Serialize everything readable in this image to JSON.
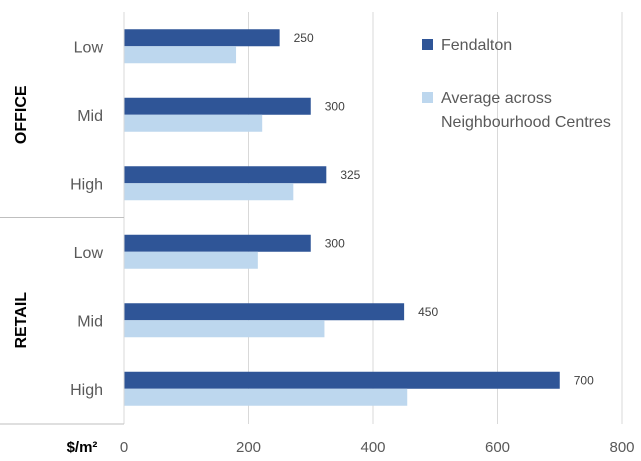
{
  "chart_data": {
    "type": "bar",
    "orientation": "horizontal",
    "unit_label": "$/m²",
    "groups": [
      {
        "label": "OFFICE",
        "categories": [
          "Low",
          "Mid",
          "High"
        ]
      },
      {
        "label": "RETAIL",
        "categories": [
          "Low",
          "Mid",
          "High"
        ]
      }
    ],
    "series": [
      {
        "name": "Fendalton",
        "color": "#2F5597",
        "values": [
          250,
          300,
          325,
          300,
          450,
          700
        ],
        "show_labels": true
      },
      {
        "name": "Average across Neighbourhood Centres",
        "color": "#BDD7EE",
        "values": [
          180,
          222,
          272,
          215,
          322,
          455
        ],
        "show_labels": false
      }
    ],
    "legend": {
      "position": "top-right",
      "entries": [
        {
          "lines": [
            "Fendalton"
          ]
        },
        {
          "lines": [
            "Average across",
            "Neighbourhood Centres"
          ]
        }
      ]
    },
    "xlim": [
      0,
      800
    ],
    "xticks": [
      0,
      200,
      400,
      600,
      800
    ],
    "grid": true
  }
}
